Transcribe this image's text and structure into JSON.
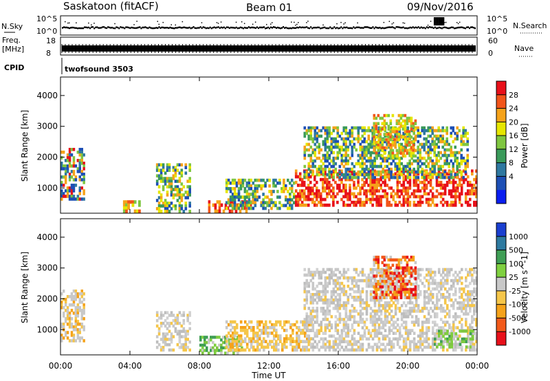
{
  "header": {
    "station": "Saskatoon (fitACF)",
    "beam": "Beam 01",
    "date": "09/Nov/2016"
  },
  "strip_labels": {
    "nsky": "N.Sky",
    "nsky_ticks": [
      "10^5",
      "10^0"
    ],
    "nsearch": "N.Search",
    "freq": "Freq.",
    "freq_unit": "[MHz]",
    "freq_ticks": [
      "18",
      "8"
    ],
    "nave": "Nave",
    "nave_ticks": [
      "60",
      "0"
    ],
    "cpid": "CPID",
    "cpid_value": "twofsound 3503"
  },
  "chart_data": [
    {
      "type": "heatmap",
      "panel": "power",
      "ylabel": "Slant Range [km]",
      "colorbar_label": "Power [dB]",
      "colorbar_ticks": [
        "28",
        "24",
        "20",
        "16",
        "12",
        "8",
        "4"
      ],
      "colorbar_colors": [
        "#e8101a",
        "#f2551a",
        "#f5a21a",
        "#e6e600",
        "#7fc640",
        "#3a9a5a",
        "#2e78a0",
        "#1d4fb5",
        "#0a1ef0"
      ],
      "xlabel": "Time UT",
      "x_ticks": [
        "00:00",
        "04:00",
        "08:00",
        "12:00",
        "16:00",
        "20:00",
        "00:00"
      ],
      "y_ticks": [
        "1000",
        "2000",
        "3000",
        "4000"
      ],
      "xlim_hours": [
        0,
        24
      ],
      "ylim_km": [
        180,
        4600
      ],
      "regions": [
        {
          "t0": 0.0,
          "t1": 1.4,
          "r0": 600,
          "r1": 2300,
          "level": "mixed-high"
        },
        {
          "t0": 3.6,
          "t1": 4.6,
          "r0": 200,
          "r1": 600,
          "level": "mid"
        },
        {
          "t0": 5.5,
          "t1": 7.5,
          "r0": 200,
          "r1": 1800,
          "level": "mixed-low"
        },
        {
          "t0": 8.5,
          "t1": 11.0,
          "r0": 200,
          "r1": 600,
          "level": "high"
        },
        {
          "t0": 9.5,
          "t1": 13.5,
          "r0": 300,
          "r1": 1300,
          "level": "mixed-low"
        },
        {
          "t0": 13.5,
          "t1": 24.0,
          "r0": 400,
          "r1": 1600,
          "level": "high"
        },
        {
          "t0": 14.0,
          "t1": 23.5,
          "r0": 1300,
          "r1": 3000,
          "level": "mixed-low"
        },
        {
          "t0": 18.0,
          "t1": 20.5,
          "r0": 2000,
          "r1": 3400,
          "level": "mid"
        }
      ]
    },
    {
      "type": "heatmap",
      "panel": "velocity",
      "ylabel": "Slant Range [km]",
      "colorbar_label": "Velocity [m s^-1]",
      "colorbar_ticks": [
        "1000",
        "500",
        "100",
        "25",
        "-25",
        "-100",
        "-500",
        "-1000"
      ],
      "colorbar_colors": [
        "#1a3fd0",
        "#2e7aa0",
        "#3f9e55",
        "#7fd040",
        "#c8c8c8",
        "#f5c64a",
        "#f5a21a",
        "#f25a1a",
        "#e8101a"
      ],
      "xlabel": "Time UT",
      "x_ticks": [
        "00:00",
        "04:00",
        "08:00",
        "12:00",
        "16:00",
        "20:00",
        "00:00"
      ],
      "y_ticks": [
        "1000",
        "2000",
        "3000",
        "4000"
      ],
      "xlim_hours": [
        0,
        24
      ],
      "ylim_km": [
        180,
        4600
      ],
      "regions": [
        {
          "t0": 0.0,
          "t1": 1.4,
          "r0": 600,
          "r1": 2300,
          "level": "orange-gray"
        },
        {
          "t0": 5.5,
          "t1": 7.5,
          "r0": 300,
          "r1": 1600,
          "level": "gray"
        },
        {
          "t0": 8.0,
          "t1": 10.5,
          "r0": 200,
          "r1": 800,
          "level": "green"
        },
        {
          "t0": 9.5,
          "t1": 14.5,
          "r0": 300,
          "r1": 1300,
          "level": "orange"
        },
        {
          "t0": 14.0,
          "t1": 24.0,
          "r0": 300,
          "r1": 3000,
          "level": "gray"
        },
        {
          "t0": 18.0,
          "t1": 20.5,
          "r0": 2000,
          "r1": 3400,
          "level": "red-orange"
        },
        {
          "t0": 21.5,
          "t1": 23.8,
          "r0": 400,
          "r1": 1000,
          "level": "green"
        }
      ]
    }
  ]
}
